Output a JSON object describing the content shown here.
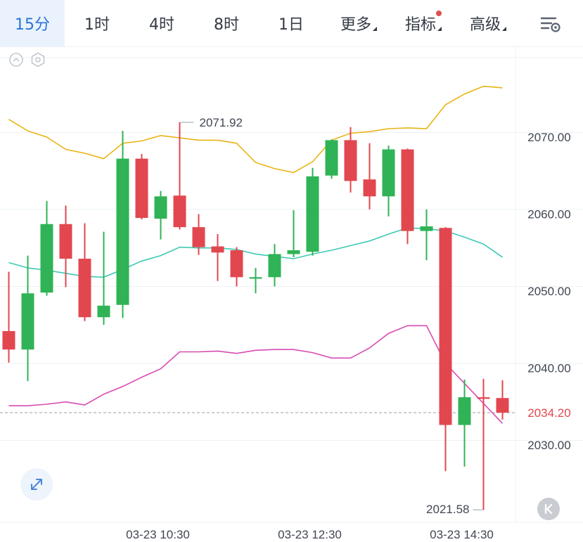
{
  "toolbar": {
    "tabs": [
      {
        "label": "15分",
        "active": true
      },
      {
        "label": "1时"
      },
      {
        "label": "4时"
      },
      {
        "label": "8时"
      },
      {
        "label": "1日"
      },
      {
        "label": "更多",
        "dropdown": true
      },
      {
        "label": "指标",
        "dropdown": true,
        "notification_dot": true
      },
      {
        "label": "高级",
        "dropdown": true
      }
    ],
    "settings_icon": "chart-settings-icon"
  },
  "colors": {
    "up": "#2fb356",
    "down": "#e2474f",
    "upper_band": "#e9b416",
    "middle_band": "#3fc9b4",
    "lower_band": "#d84bb2",
    "current_price": "#e2474f",
    "active_tab": "#2a73d9"
  },
  "chart_data": {
    "type": "candlestick",
    "y_axis": {
      "ticks": [
        "2070.00",
        "2060.00",
        "2050.00",
        "2040.00",
        "2030.00"
      ],
      "ylim": [
        2020,
        2078
      ]
    },
    "x_axis": {
      "ticks": [
        "03-23 10:30",
        "03-23 12:30",
        "03-23 14:30"
      ],
      "tick_index": [
        8,
        16,
        24
      ]
    },
    "candles": [
      {
        "o": 2044.8,
        "h": 2052.5,
        "l": 2040.7,
        "c": 2042.4
      },
      {
        "o": 2042.4,
        "h": 2054.6,
        "l": 2038.3,
        "c": 2049.7
      },
      {
        "o": 2049.8,
        "h": 2061.7,
        "l": 2049.4,
        "c": 2058.7
      },
      {
        "o": 2058.7,
        "h": 2061.1,
        "l": 2050.5,
        "c": 2054.2
      },
      {
        "o": 2054.2,
        "h": 2058.8,
        "l": 2046.1,
        "c": 2046.6
      },
      {
        "o": 2046.6,
        "h": 2057.7,
        "l": 2045.6,
        "c": 2048.1
      },
      {
        "o": 2048.2,
        "h": 2070.8,
        "l": 2046.5,
        "c": 2067.2
      },
      {
        "o": 2067.2,
        "h": 2067.8,
        "l": 2059.3,
        "c": 2059.5
      },
      {
        "o": 2059.4,
        "h": 2063.0,
        "l": 2056.7,
        "c": 2062.3
      },
      {
        "o": 2062.4,
        "h": 2071.92,
        "l": 2058.0,
        "c": 2058.3
      },
      {
        "o": 2058.3,
        "h": 2060.0,
        "l": 2054.7,
        "c": 2055.7
      },
      {
        "o": 2055.8,
        "h": 2057.4,
        "l": 2051.3,
        "c": 2055.0
      },
      {
        "o": 2055.3,
        "h": 2055.7,
        "l": 2050.6,
        "c": 2051.8
      },
      {
        "o": 2051.6,
        "h": 2053.0,
        "l": 2049.7,
        "c": 2051.8
      },
      {
        "o": 2051.8,
        "h": 2056.1,
        "l": 2050.6,
        "c": 2054.8
      },
      {
        "o": 2054.8,
        "h": 2060.5,
        "l": 2054.4,
        "c": 2055.3
      },
      {
        "o": 2055.1,
        "h": 2066.0,
        "l": 2054.6,
        "c": 2064.9
      },
      {
        "o": 2065.0,
        "h": 2069.7,
        "l": 2064.6,
        "c": 2069.6
      },
      {
        "o": 2069.6,
        "h": 2071.3,
        "l": 2062.8,
        "c": 2064.3
      },
      {
        "o": 2064.5,
        "h": 2069.2,
        "l": 2060.6,
        "c": 2062.3
      },
      {
        "o": 2062.3,
        "h": 2068.9,
        "l": 2059.7,
        "c": 2068.4
      },
      {
        "o": 2068.4,
        "h": 2068.5,
        "l": 2056.1,
        "c": 2057.8
      },
      {
        "o": 2057.8,
        "h": 2060.6,
        "l": 2054.0,
        "c": 2058.4
      },
      {
        "o": 2058.2,
        "h": 2058.3,
        "l": 2026.6,
        "c": 2032.6
      },
      {
        "o": 2032.6,
        "h": 2038.5,
        "l": 2027.2,
        "c": 2036.2
      },
      {
        "o": 2036.2,
        "h": 2038.6,
        "l": 2021.58,
        "c": 2036.0
      },
      {
        "o": 2036.1,
        "h": 2038.4,
        "l": 2033.3,
        "c": 2034.2
      }
    ],
    "bands": {
      "upper": [
        2072.3,
        2070.8,
        2070.0,
        2068.4,
        2067.9,
        2067.2,
        2069.2,
        2069.5,
        2070.2,
        2069.9,
        2069.6,
        2069.6,
        2069.2,
        2066.7,
        2065.9,
        2065.4,
        2066.8,
        2069.6,
        2070.5,
        2070.7,
        2071.1,
        2071.2,
        2071.1,
        2074.2,
        2075.6,
        2076.6,
        2076.4
      ],
      "middle": [
        2053.7,
        2053.0,
        2052.7,
        2052.3,
        2051.9,
        2051.8,
        2052.8,
        2053.9,
        2054.6,
        2055.7,
        2055.6,
        2055.6,
        2055.4,
        2054.8,
        2054.5,
        2054.2,
        2054.8,
        2055.3,
        2055.9,
        2056.5,
        2057.4,
        2058.2,
        2058.1,
        2057.8,
        2057.0,
        2056.1,
        2054.4
      ],
      "lower": [
        2035.1,
        2035.1,
        2035.3,
        2035.6,
        2035.2,
        2036.6,
        2037.6,
        2038.8,
        2039.9,
        2042.1,
        2042.1,
        2042.2,
        2041.9,
        2042.3,
        2042.4,
        2042.4,
        2042.0,
        2041.3,
        2041.3,
        2042.6,
        2044.5,
        2045.5,
        2045.5,
        2040.6,
        2038.0,
        2035.4,
        2032.8
      ]
    },
    "current_price": 2034.2,
    "current_price_label": "2034.20",
    "max_label": "2071.92",
    "min_label": "2021.58",
    "grid": true
  }
}
